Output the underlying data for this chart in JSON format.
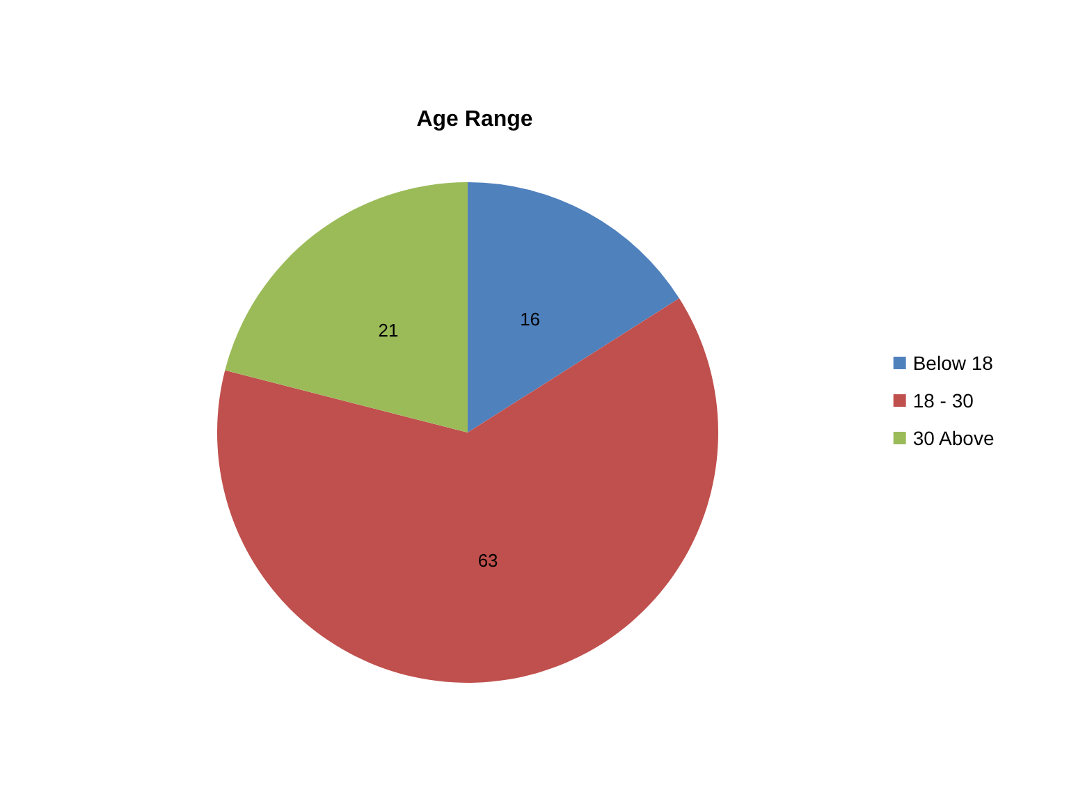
{
  "chart_data": {
    "type": "pie",
    "title": "Age Range",
    "categories": [
      "Below 18",
      "18 - 30",
      "30 Above"
    ],
    "values": [
      16,
      63,
      21
    ],
    "colors": [
      "#4f81bd",
      "#c0504d",
      "#9bbb59"
    ],
    "data_labels": true,
    "legend": "right"
  }
}
